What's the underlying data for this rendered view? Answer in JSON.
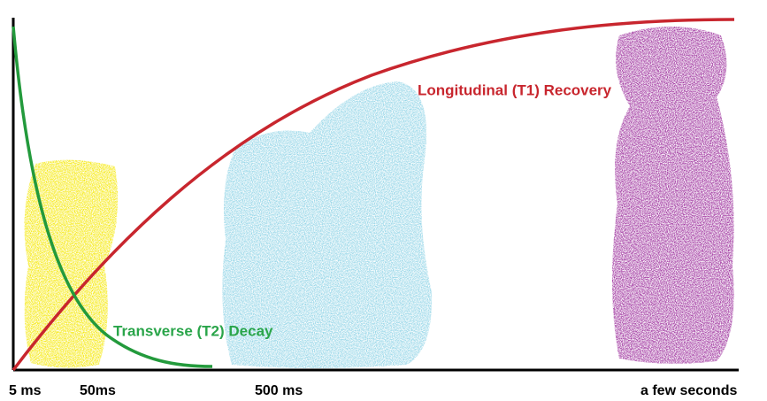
{
  "curves": {
    "t1_label": "Longitudinal (T1) Recovery",
    "t2_label": "Transverse (T2) Decay"
  },
  "time_labels": [
    "5 ms",
    "50ms",
    "500 ms",
    "a few seconds"
  ]
}
